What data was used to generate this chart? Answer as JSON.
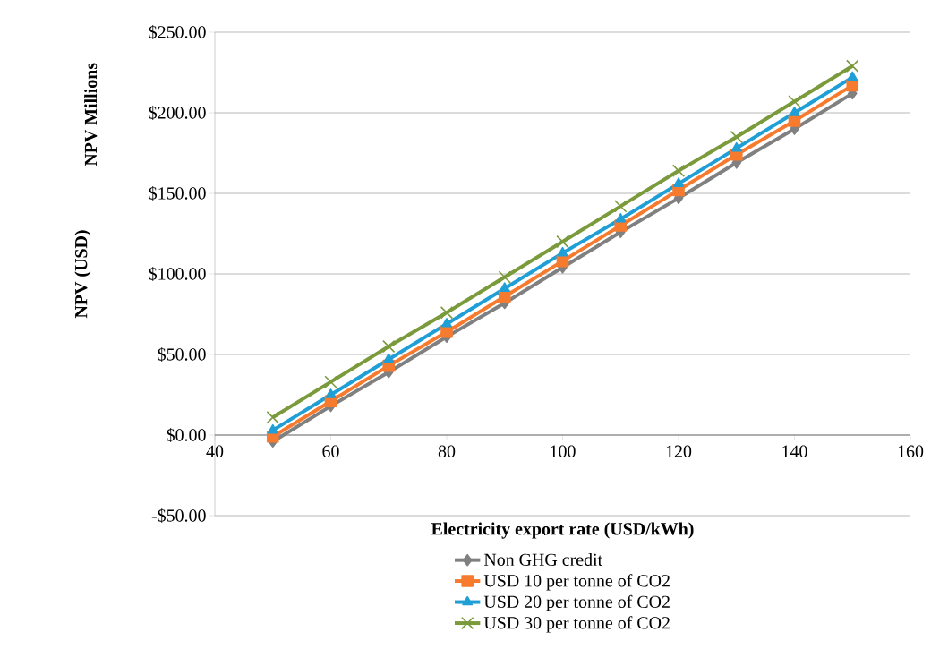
{
  "chart_data": {
    "type": "line",
    "xlabel": "Electricity export rate (USD/kWh)",
    "ylabel": "NPV (USD)",
    "annotations": [
      "NPV Millions"
    ],
    "x": [
      50,
      60,
      70,
      80,
      90,
      100,
      110,
      120,
      130,
      140,
      150
    ],
    "xlim": [
      40,
      160
    ],
    "xticks": [
      40,
      60,
      80,
      100,
      120,
      140,
      160
    ],
    "ylim": [
      -50,
      250
    ],
    "yticks": [
      {
        "value": -50,
        "label": "-$50.00"
      },
      {
        "value": 0,
        "label": "$0.00"
      },
      {
        "value": 50,
        "label": "$50.00"
      },
      {
        "value": 100,
        "label": "$100.00"
      },
      {
        "value": 150,
        "label": "$150.00"
      },
      {
        "value": 200,
        "label": "$200.00"
      },
      {
        "value": 250,
        "label": "$250.00"
      }
    ],
    "grid": "y",
    "legend": "bottom",
    "series": [
      {
        "name": "Non GHG credit",
        "color": "#808080",
        "marker": "diamond",
        "values": [
          -4,
          18,
          39,
          61,
          82,
          104,
          126,
          147,
          169,
          190,
          212
        ]
      },
      {
        "name": "USD 10 per tonne of CO2",
        "color": "#f77b2e",
        "marker": "square",
        "values": [
          -1,
          21,
          43,
          64,
          86,
          108,
          130,
          152,
          174,
          195,
          217
        ]
      },
      {
        "name": "USD 20 per tonne of CO2",
        "color": "#1f9fd6",
        "marker": "triangle",
        "values": [
          3,
          25,
          47,
          69,
          91,
          113,
          134,
          156,
          178,
          200,
          222
        ]
      },
      {
        "name": "USD 30 per tonne of CO2",
        "color": "#7a9a3c",
        "marker": "cross",
        "values": [
          11,
          33,
          55,
          76,
          98,
          120,
          142,
          164,
          185,
          207,
          229
        ]
      }
    ]
  }
}
